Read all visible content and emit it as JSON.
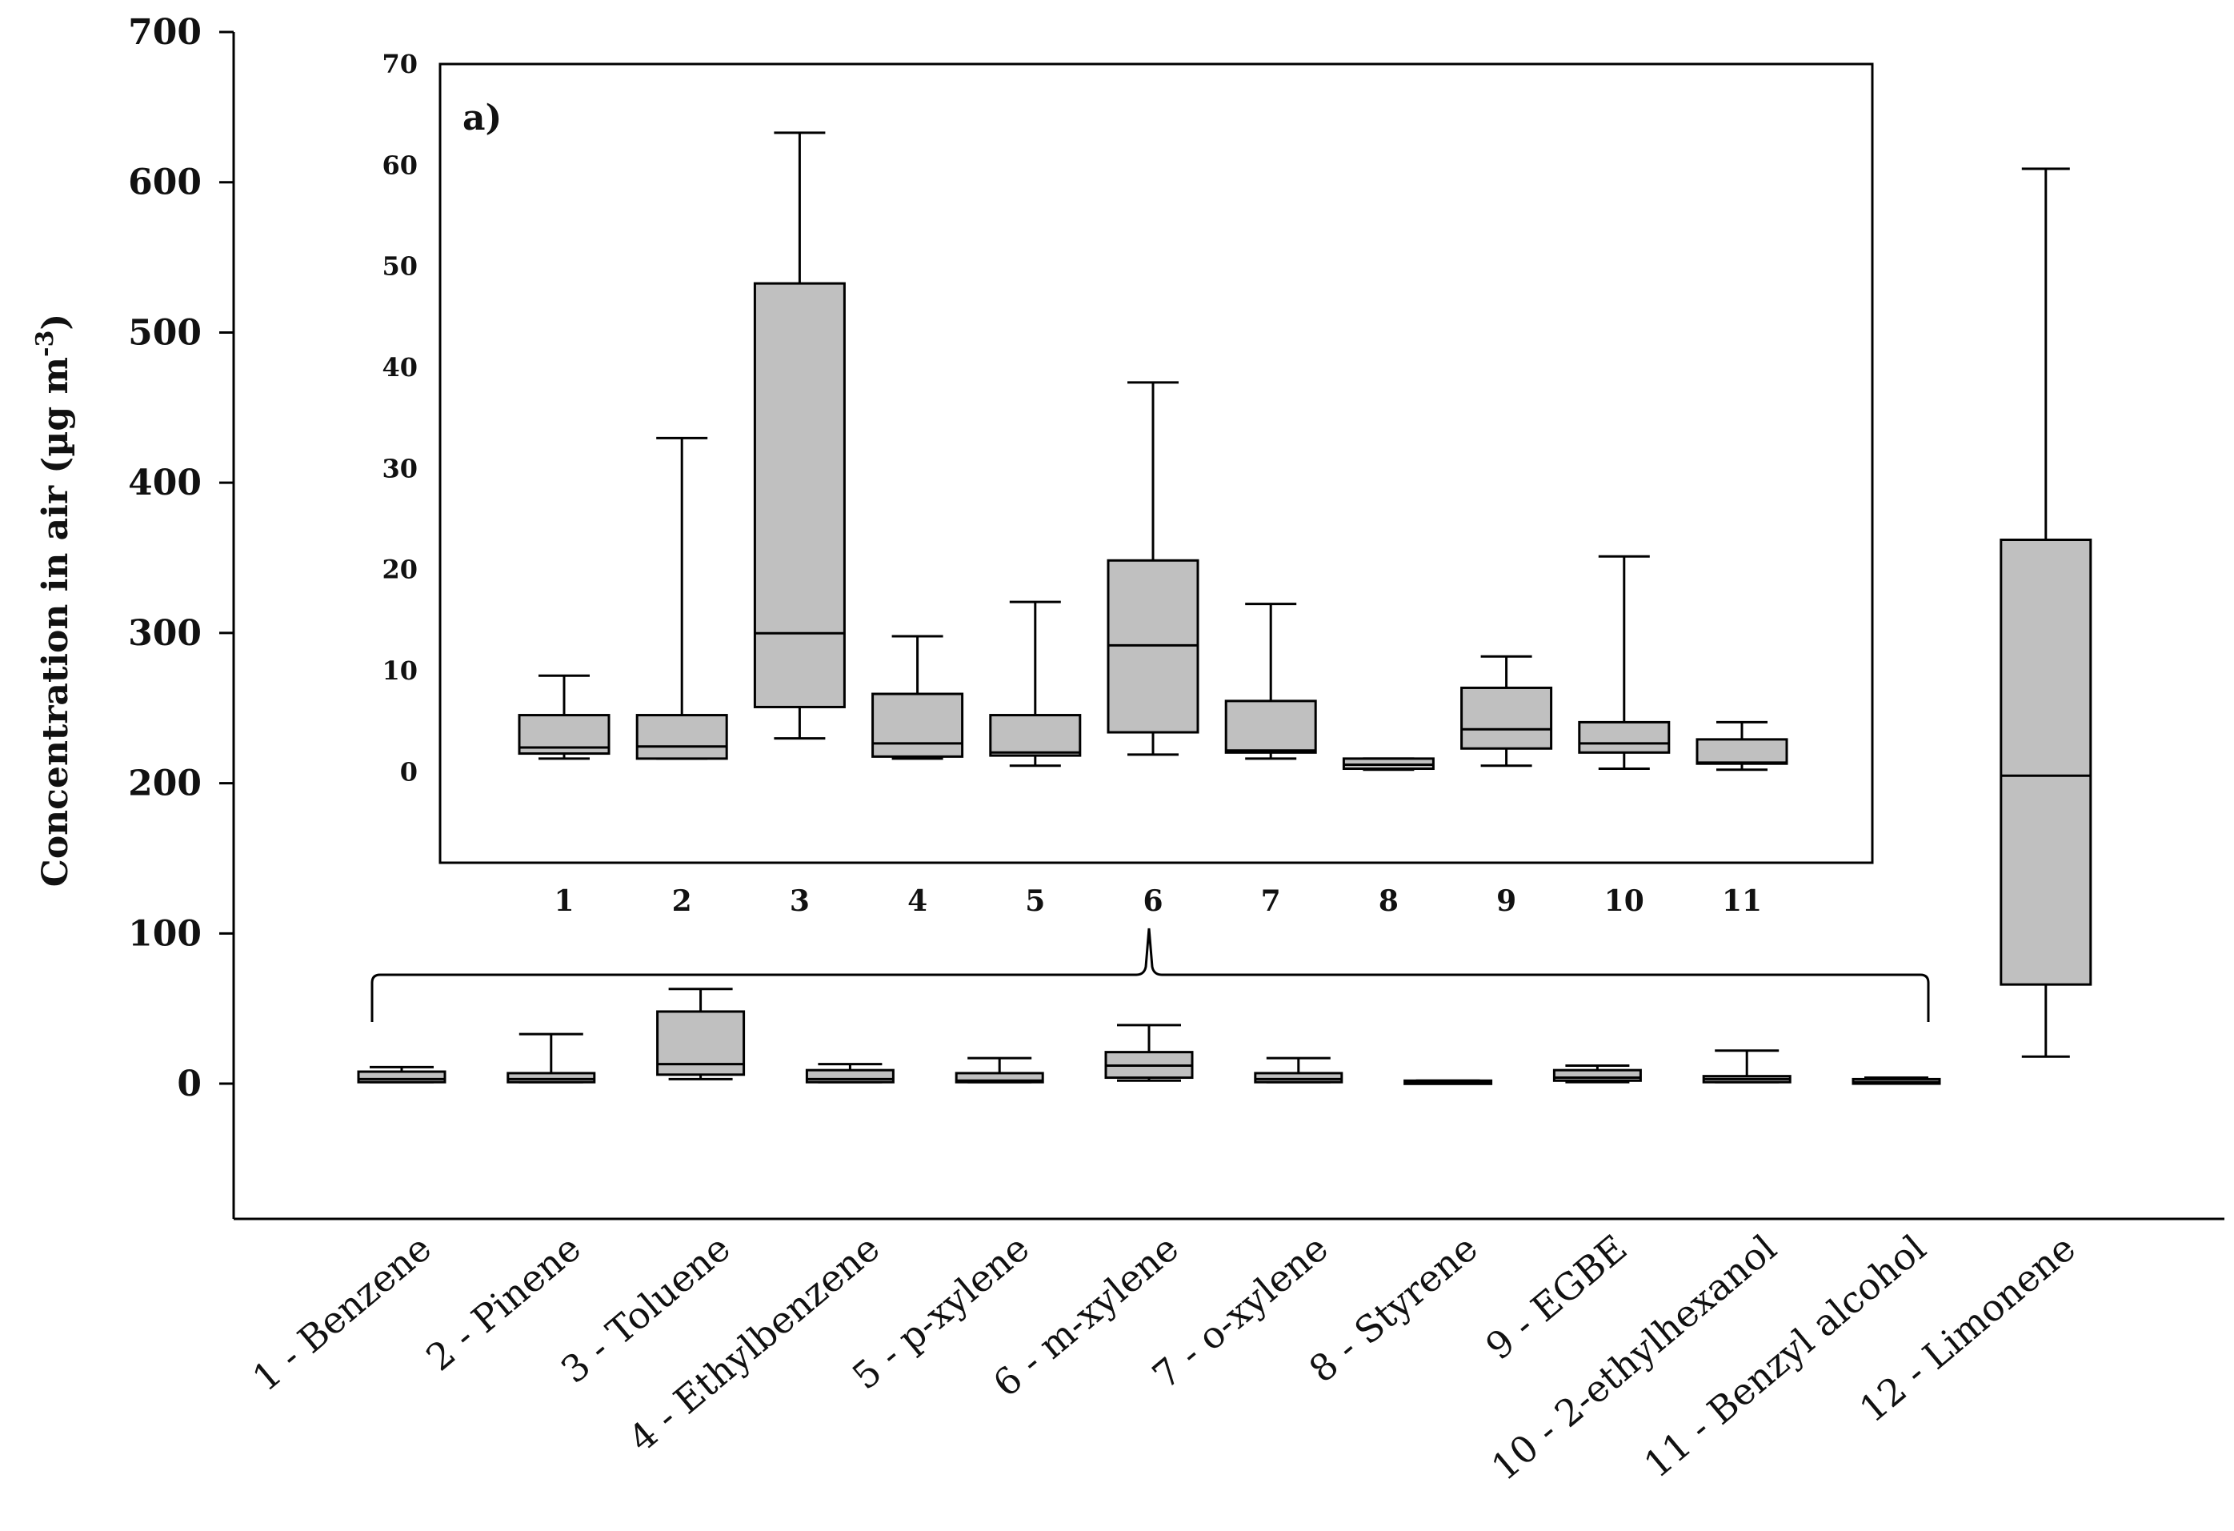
{
  "chart_data": [
    {
      "type": "boxplot",
      "title": "",
      "ylabel": "Concentration in air (µg m",
      "ylabel_superscript": "-3",
      "ylabel_suffix": ")",
      "ylim": [
        -90,
        700
      ],
      "yticks": [
        0,
        100,
        200,
        300,
        400,
        500,
        600,
        700
      ],
      "categories": [
        "1 - Benzene",
        "2 - Pinene",
        "3 - Toluene",
        "4 - Ethylbenzene",
        "5 - p-xylene",
        "6 - m-xylene",
        "7 - o-xylene",
        "8 - Styrene",
        "9 - EGBE",
        "10 - 2-ethylhexanol",
        "11 - Benzyl alcohol",
        "12 - Limonene"
      ],
      "boxes": [
        {
          "min": 1,
          "q1": 1,
          "median": 3,
          "q3": 8,
          "max": 11
        },
        {
          "min": 1,
          "q1": 1,
          "median": 3,
          "q3": 7,
          "max": 33
        },
        {
          "min": 3,
          "q1": 6,
          "median": 13,
          "q3": 48,
          "max": 63
        },
        {
          "min": 1,
          "q1": 1,
          "median": 3,
          "q3": 9,
          "max": 13
        },
        {
          "min": 1,
          "q1": 1,
          "median": 2,
          "q3": 7,
          "max": 17
        },
        {
          "min": 2,
          "q1": 4,
          "median": 12,
          "q3": 21,
          "max": 39
        },
        {
          "min": 1,
          "q1": 1,
          "median": 3,
          "q3": 7,
          "max": 17
        },
        {
          "min": 0,
          "q1": 0,
          "median": 1,
          "q3": 2,
          "max": 2
        },
        {
          "min": 1,
          "q1": 2,
          "median": 4,
          "q3": 9,
          "max": 12
        },
        {
          "min": 1,
          "q1": 1,
          "median": 3,
          "q3": 5,
          "max": 22
        },
        {
          "min": 0,
          "q1": 0,
          "median": 1,
          "q3": 3,
          "max": 4
        },
        {
          "min": 18,
          "q1": 66,
          "median": 205,
          "q3": 362,
          "max": 609
        }
      ]
    },
    {
      "type": "boxplot",
      "inset": true,
      "panel_label": "a)",
      "ylim": [
        -9,
        70
      ],
      "yticks": [
        0,
        10,
        20,
        30,
        40,
        50,
        60,
        70
      ],
      "categories": [
        "1",
        "2",
        "3",
        "4",
        "5",
        "6",
        "7",
        "8",
        "9",
        "10",
        "11"
      ],
      "boxes": [
        {
          "min": 1.3,
          "q1": 1.8,
          "median": 2.4,
          "q3": 5.6,
          "max": 9.5
        },
        {
          "min": 1.3,
          "q1": 1.3,
          "median": 2.5,
          "q3": 5.6,
          "max": 33.0
        },
        {
          "min": 3.3,
          "q1": 6.4,
          "median": 13.7,
          "q3": 48.3,
          "max": 63.2
        },
        {
          "min": 1.3,
          "q1": 1.5,
          "median": 2.8,
          "q3": 7.7,
          "max": 13.4
        },
        {
          "min": 0.6,
          "q1": 1.6,
          "median": 1.9,
          "q3": 5.6,
          "max": 16.8
        },
        {
          "min": 1.7,
          "q1": 3.9,
          "median": 12.5,
          "q3": 20.9,
          "max": 38.5
        },
        {
          "min": 1.3,
          "q1": 1.9,
          "median": 2.1,
          "q3": 7.0,
          "max": 16.6
        },
        {
          "min": 0.2,
          "q1": 0.3,
          "median": 0.7,
          "q3": 1.3,
          "max": 1.3
        },
        {
          "min": 0.6,
          "q1": 2.3,
          "median": 4.2,
          "q3": 8.3,
          "max": 11.4
        },
        {
          "min": 0.3,
          "q1": 1.9,
          "median": 2.8,
          "q3": 4.9,
          "max": 21.3
        },
        {
          "min": 0.2,
          "q1": 0.8,
          "median": 0.9,
          "q3": 3.2,
          "max": 4.9
        }
      ]
    }
  ]
}
